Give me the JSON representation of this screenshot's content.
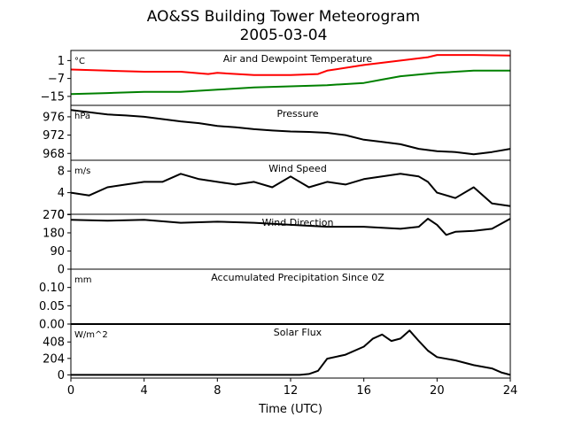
{
  "chart_data": {
    "type": "line",
    "title": "AO&SS Building Tower Meteorogram",
    "subtitle": "2005-03-04",
    "xlabel": "Time (UTC)",
    "xlim": [
      0,
      24
    ],
    "xticks": [
      "0",
      "4",
      "8",
      "12",
      "16",
      "20",
      "24"
    ],
    "grid": false,
    "panels": [
      {
        "title": "Air and Dewpoint Temperature",
        "unit": "°C",
        "ylim": [
          -19,
          5.5
        ],
        "yticks": [
          {
            "v": 1,
            "label": "1"
          },
          {
            "v": -7,
            "label": "−7"
          },
          {
            "v": -15,
            "label": "−15"
          }
        ],
        "series": [
          {
            "color": "#ff0000",
            "x": [
              0,
              2,
              4,
              6,
              7.5,
              8,
              10,
              12,
              13.5,
              14,
              16,
              18,
              19.5,
              20,
              22,
              24
            ],
            "values": [
              -3,
              -3.5,
              -4,
              -4,
              -5,
              -4.5,
              -5.5,
              -5.5,
              -5,
              -3.5,
              -1,
              1,
              2.5,
              3.5,
              3.5,
              3.2
            ]
          },
          {
            "color": "#008000",
            "x": [
              0,
              2,
              4,
              6,
              8,
              10,
              12,
              14,
              16,
              17,
              18,
              20,
              22,
              24
            ],
            "values": [
              -14,
              -13.5,
              -13,
              -13,
              -12,
              -11,
              -10.5,
              -10,
              -9,
              -7.5,
              -6,
              -4.5,
              -3.5,
              -3.5
            ]
          }
        ]
      },
      {
        "title": "Pressure",
        "unit": "hPa",
        "ylim": [
          966.5,
          978.5
        ],
        "yticks": [
          {
            "v": 976,
            "label": "976"
          },
          {
            "v": 972,
            "label": "972"
          },
          {
            "v": 968,
            "label": "968"
          }
        ],
        "series": [
          {
            "color": "#000000",
            "x": [
              0,
              1,
              2,
              3,
              4,
              5,
              6,
              7,
              8,
              9,
              10,
              11,
              12,
              13,
              14,
              15,
              16,
              17,
              18,
              19,
              20,
              21,
              22,
              23,
              24
            ],
            "values": [
              977.5,
              977,
              976.5,
              976.3,
              976,
              975.5,
              975,
              974.6,
              974,
              973.7,
              973.3,
              973,
              972.8,
              972.7,
              972.5,
              972,
              971,
              970.5,
              970,
              969,
              968.5,
              968.3,
              967.8,
              968.3,
              969
            ]
          }
        ]
      },
      {
        "title": "Wind Speed",
        "unit": "m/s",
        "ylim": [
          0,
          10
        ],
        "yticks": [
          {
            "v": 8,
            "label": "8"
          },
          {
            "v": 4,
            "label": "4"
          },
          {
            "v": 0,
            "label": "0"
          }
        ],
        "series": [
          {
            "color": "#000000",
            "x": [
              0,
              1,
              2,
              3,
              4,
              5,
              6,
              7,
              8,
              9,
              10,
              11,
              12,
              13,
              14,
              15,
              16,
              17,
              18,
              19,
              19.5,
              20,
              21,
              22,
              23,
              24
            ],
            "values": [
              4,
              3.5,
              5,
              5.5,
              6,
              6,
              7.5,
              6.5,
              6,
              5.5,
              6,
              5,
              7,
              5,
              6,
              5.5,
              6.5,
              7,
              7.5,
              7,
              6,
              4,
              3,
              5,
              2,
              1.5
            ]
          }
        ]
      },
      {
        "title": "Wind Direction",
        "unit": "",
        "ylim": [
          0,
          272
        ],
        "yticks": [
          {
            "v": 270,
            "label": "270"
          },
          {
            "v": 180,
            "label": "180"
          },
          {
            "v": 90,
            "label": "90"
          },
          {
            "v": 0,
            "label": "0"
          }
        ],
        "series": [
          {
            "color": "#000000",
            "x": [
              0,
              2,
              4,
              6,
              8,
              10,
              12,
              14,
              16,
              18,
              19,
              19.5,
              20,
              20.5,
              21,
              22,
              23,
              24
            ],
            "values": [
              245,
              240,
              245,
              230,
              235,
              230,
              220,
              210,
              210,
              200,
              210,
              250,
              220,
              170,
              185,
              190,
              200,
              250
            ]
          }
        ]
      },
      {
        "title": "Accumulated Precipitation Since 0Z",
        "unit": "mm",
        "ylim": [
          0,
          0.15
        ],
        "yticks": [
          {
            "v": 0.1,
            "label": "0.10"
          },
          {
            "v": 0.05,
            "label": "0.05"
          },
          {
            "v": 0.0,
            "label": "0.00"
          }
        ],
        "series": [
          {
            "color": "#000000",
            "x": [
              0,
              24
            ],
            "values": [
              0,
              0
            ]
          }
        ]
      },
      {
        "title": "Solar Flux",
        "unit": "W/m^2",
        "ylim": [
          -40,
          630
        ],
        "yticks": [
          {
            "v": 408,
            "label": "408"
          },
          {
            "v": 204,
            "label": "204"
          },
          {
            "v": 0,
            "label": "0"
          }
        ],
        "series": [
          {
            "color": "#000000",
            "x": [
              0,
              12.5,
              13,
              13.5,
              14,
              15,
              16,
              16.5,
              17,
              17.5,
              18,
              18.5,
              19,
              19.5,
              20,
              21,
              22,
              23,
              23.5,
              24
            ],
            "values": [
              0,
              0,
              10,
              50,
              200,
              250,
              350,
              450,
              500,
              420,
              450,
              550,
              420,
              300,
              220,
              180,
              120,
              80,
              30,
              0
            ]
          }
        ]
      }
    ]
  }
}
